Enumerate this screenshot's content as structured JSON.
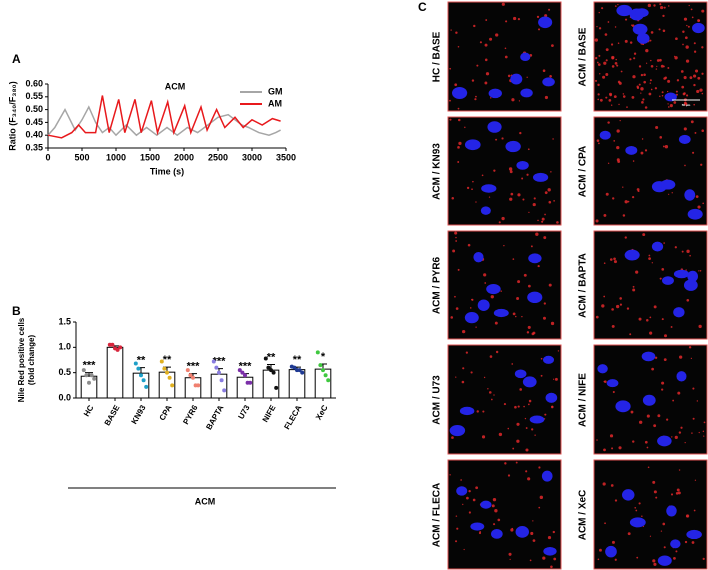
{
  "chart_data": [
    {
      "type": "line",
      "panel": "A",
      "title": "ACM",
      "x_label": "Time (s)",
      "y_label": "Ratio (F₃₄₀/F₃₈₀)",
      "xlim": [
        0,
        3500
      ],
      "xticks": [
        0,
        500,
        1000,
        1500,
        2000,
        2500,
        3000,
        3500
      ],
      "ylim": [
        0.35,
        0.6
      ],
      "yticks": [
        0.35,
        {
          "value": 0.4,
          "label": "0.40"
        },
        0.45,
        {
          "value": 0.5,
          "label": "0.50"
        },
        0.55,
        {
          "value": 0.6,
          "label": "0.60"
        }
      ],
      "legend": "upper right",
      "series": [
        {
          "name": "GM",
          "color": "#a6a6a6",
          "x": [
            0,
            100,
            250,
            400,
            500,
            600,
            700,
            800,
            900,
            1000,
            1150,
            1300,
            1450,
            1600,
            1750,
            1900,
            2050,
            2200,
            2350,
            2500,
            2650,
            2750,
            2850,
            2950,
            3100,
            3250,
            3350,
            3420
          ],
          "values": [
            0.4,
            0.43,
            0.5,
            0.42,
            0.46,
            0.51,
            0.45,
            0.41,
            0.43,
            0.4,
            0.44,
            0.4,
            0.43,
            0.4,
            0.43,
            0.4,
            0.43,
            0.41,
            0.44,
            0.47,
            0.48,
            0.46,
            0.44,
            0.43,
            0.41,
            0.4,
            0.41,
            0.42
          ]
        },
        {
          "name": "AM",
          "color": "#e8191c",
          "x": [
            0,
            200,
            350,
            450,
            550,
            700,
            800,
            900,
            1040,
            1130,
            1280,
            1370,
            1520,
            1610,
            1760,
            1850,
            2010,
            2100,
            2250,
            2340,
            2480,
            2600,
            2750,
            2870,
            3000,
            3150,
            3300,
            3420
          ],
          "values": [
            0.4,
            0.39,
            0.41,
            0.44,
            0.41,
            0.41,
            0.555,
            0.41,
            0.54,
            0.41,
            0.54,
            0.41,
            0.535,
            0.41,
            0.53,
            0.41,
            0.515,
            0.41,
            0.51,
            0.42,
            0.5,
            0.43,
            0.47,
            0.43,
            0.46,
            0.44,
            0.465,
            0.455
          ]
        }
      ]
    },
    {
      "type": "bar",
      "panel": "B",
      "y_label": [
        "Nile Red positive cells",
        "(fold change)"
      ],
      "group_label": "ACM",
      "categories": [
        "HC",
        "BASE",
        "KN93",
        "CPA",
        "PYR6",
        "BAPTA",
        "U73",
        "NIFE",
        "FLECA",
        "XeC"
      ],
      "values": [
        0.43,
        1.0,
        0.49,
        0.51,
        0.4,
        0.47,
        0.41,
        0.55,
        0.56,
        0.57
      ],
      "errors": [
        0.07,
        0.03,
        0.11,
        0.1,
        0.08,
        0.11,
        0.07,
        0.11,
        0.05,
        0.1
      ],
      "significance": [
        "***",
        null,
        "**",
        "**",
        "***",
        "***",
        "***",
        "**",
        "**",
        "*"
      ],
      "point_colors": [
        "#8c8c8c",
        "#d7263d",
        "#1fa0c8",
        "#e0b020",
        "#f08070",
        "#8a7de0",
        "#7b2fa8",
        "#111111",
        "#1f3a93",
        "#3fc83f"
      ],
      "points": [
        [
          0.55,
          0.45,
          0.3,
          0.45,
          0.38
        ],
        [
          1.05,
          1.05,
          0.98,
          0.95,
          1.0
        ],
        [
          0.68,
          0.58,
          0.45,
          0.35,
          0.22
        ],
        [
          0.72,
          0.58,
          0.5,
          0.4,
          0.25
        ],
        [
          0.55,
          0.45,
          0.4,
          0.25,
          0.25
        ],
        [
          0.72,
          0.6,
          0.5,
          0.35,
          0.15
        ],
        [
          0.55,
          0.5,
          0.45,
          0.3,
          0.3
        ],
        [
          0.78,
          0.6,
          0.55,
          0.5,
          0.2
        ],
        [
          0.62,
          0.6,
          0.55,
          0.55,
          0.5
        ],
        [
          0.9,
          0.65,
          0.55,
          0.45,
          0.35
        ]
      ],
      "ylim": [
        0,
        1.5
      ],
      "yticks": [
        {
          "value": 0,
          "label": "0.0"
        },
        0.5,
        {
          "value": 1,
          "label": "1.0"
        },
        1.5
      ]
    }
  ],
  "image_panel": {
    "panel": "C",
    "scale_bar": "50 µm",
    "columns": [
      [
        "HC / BASE",
        "ACM / KN93",
        "ACM / PYR6",
        "ACM / U73",
        "ACM / FLECA"
      ],
      [
        "ACM / BASE",
        "ACM / CPA",
        "ACM / BAPTA",
        "ACM / NIFE",
        "ACM / XeC"
      ]
    ]
  }
}
